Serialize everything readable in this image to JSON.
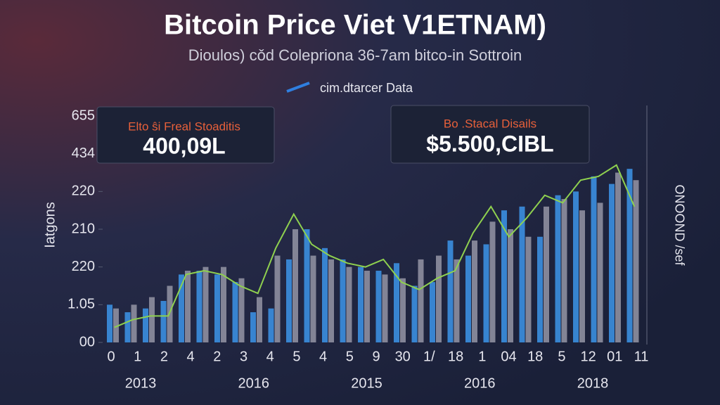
{
  "chart_data": {
    "type": "bar",
    "title": "Bitcoin Price Viet V1ETNAM)",
    "subtitle": "Dioulos) cǒd Colepriona 36-7am bitco-in Sottroin",
    "source_label": "cim.dtarcer Data",
    "y_label": "Iatgons",
    "y2_label": "ONOOND /sef",
    "callouts": [
      {
        "title": "Elto ŝi Freal Stoaditis",
        "value": "400,09L"
      },
      {
        "title": "Bo .Stacal Disails",
        "value": "$5.500,CIBL"
      }
    ],
    "ylim": [
      0,
      6
    ],
    "yticks": [
      {
        "value": 0,
        "label": "00"
      },
      {
        "value": 1,
        "label": "1.05"
      },
      {
        "value": 2,
        "label": "220"
      },
      {
        "value": 3,
        "label": "210"
      },
      {
        "value": 4,
        "label": "220"
      },
      {
        "value": 5,
        "label": "434"
      },
      {
        "value": 6,
        "label": "655"
      }
    ],
    "xtick_labels": [
      "0",
      "1",
      "2",
      "4",
      "2",
      "3",
      "4",
      "5",
      "4",
      "5",
      "9",
      "30",
      "1/",
      "18",
      "1",
      "04",
      "18",
      "5",
      "12",
      "01",
      "11"
    ],
    "year_labels": [
      "2013",
      "2016",
      "2015",
      "2016",
      "2018"
    ],
    "series": [
      {
        "color": "#3b8fe0",
        "values": [
          1.0,
          0.8,
          0.9,
          1.1,
          1.8,
          1.9,
          1.8,
          1.6,
          0.8,
          0.9,
          2.2,
          3.0,
          2.5,
          2.2,
          2.0,
          1.9,
          2.1,
          1.5,
          1.6,
          2.7,
          2.3,
          2.6,
          3.5,
          3.6,
          2.8,
          3.9,
          4.0,
          4.4,
          4.2,
          4.6
        ]
      },
      {
        "color": "#8e8fa0",
        "values": [
          0.9,
          1.0,
          1.2,
          1.5,
          1.9,
          2.0,
          2.0,
          1.7,
          1.2,
          2.3,
          3.0,
          2.3,
          2.2,
          2.0,
          1.9,
          1.8,
          1.7,
          2.2,
          2.3,
          2.2,
          2.7,
          3.2,
          3.0,
          2.8,
          3.6,
          3.8,
          3.5,
          3.7,
          4.5,
          4.3
        ]
      },
      {
        "type": "line",
        "color": "#8fd14f",
        "values": [
          0.4,
          0.6,
          0.7,
          0.7,
          1.8,
          1.9,
          1.8,
          1.5,
          1.3,
          2.5,
          3.4,
          2.6,
          2.3,
          2.1,
          2.0,
          2.2,
          1.6,
          1.4,
          1.7,
          1.9,
          2.9,
          3.6,
          2.8,
          3.3,
          3.9,
          3.7,
          4.3,
          4.4,
          4.7,
          3.6
        ]
      }
    ]
  }
}
